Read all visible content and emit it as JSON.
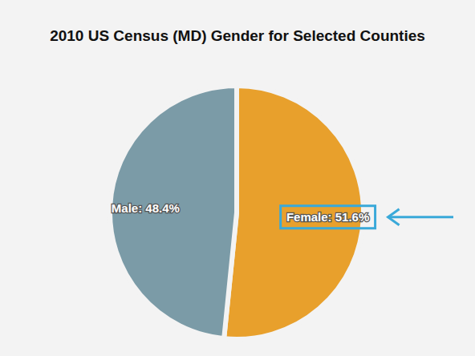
{
  "chart_data": {
    "type": "pie",
    "title": "2010 US Census (MD) Gender for Selected Counties",
    "categories": [
      "Male",
      "Female"
    ],
    "values": [
      48.4,
      51.6
    ],
    "value_labels": [
      "Male: 48.4%",
      "Female: 51.6%"
    ],
    "colors": [
      "#7b9ba7",
      "#e8a02c"
    ],
    "data_labels": true
  }
}
